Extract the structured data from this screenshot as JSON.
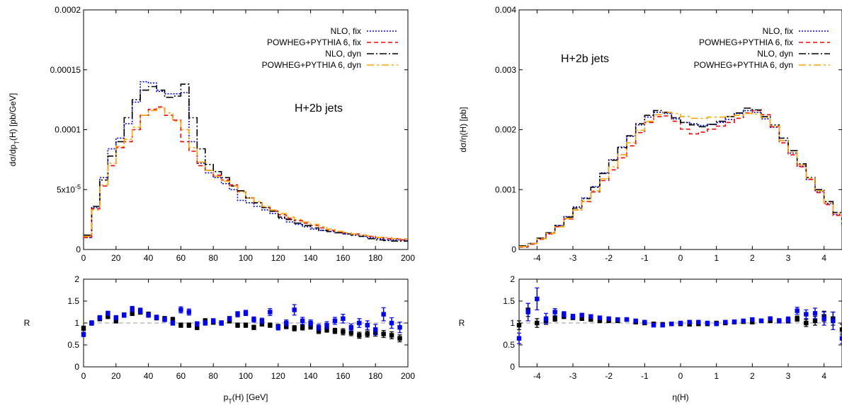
{
  "chart_data": [
    {
      "type": "line",
      "panel": "left-main",
      "annotation": "H+2b jets",
      "ylabel": "dσ/dp_T(H) [pb/GeV]",
      "xlim": [
        0,
        200
      ],
      "ylim": [
        0,
        0.0002
      ],
      "xticks": [
        "0",
        "20",
        "40",
        "60",
        "80",
        "100",
        "120",
        "140",
        "160",
        "180",
        "200"
      ],
      "yticks": [
        {
          "v": 0,
          "label": "0"
        },
        {
          "v": 5e-05,
          "label": "5x10",
          "sup": "-5"
        },
        {
          "v": 0.0001,
          "label": "0.0001"
        },
        {
          "v": 0.00015,
          "label": "0.00015"
        },
        {
          "v": 0.0002,
          "label": "0.0002"
        }
      ],
      "legend_position": "top-right",
      "grid": false,
      "bin_width": 5,
      "series": [
        {
          "name": "NLO, fix",
          "color": "#0000ff",
          "dash": "2,2",
          "values": [
            1e-05,
            3.5e-05,
            6e-05,
            8.4e-05,
            9.3e-05,
            0.000105,
            0.000123,
            0.00014,
            0.000139,
            0.000132,
            0.00013,
            0.00013,
            0.000131,
            9e-05,
            7.2e-05,
            6.4e-05,
            6e-05,
            5.5e-05,
            5e-05,
            4.1e-05,
            3.9e-05,
            3.6e-05,
            3.3e-05,
            3e-05,
            2.6e-05,
            2.3e-05,
            2.1e-05,
            1.9e-05,
            1.7e-05,
            1.6e-05,
            1.5e-05,
            1.4e-05,
            1.3e-05,
            1.2e-05,
            1.1e-05,
            1e-05,
            9e-06,
            8e-06,
            8e-06,
            8e-06
          ]
        },
        {
          "name": "POWHEG+PYTHIA 6, fix",
          "color": "#ff0000",
          "dash": "6,4",
          "values": [
            1e-05,
            3.4e-05,
            5.3e-05,
            7e-05,
            8.5e-05,
            9e-05,
            0.0001,
            0.000112,
            0.000117,
            0.000119,
            0.000112,
            0.000108,
            9e-05,
            8.2e-05,
            7e-05,
            6.6e-05,
            6.2e-05,
            5.8e-05,
            5.4e-05,
            4.8e-05,
            4.3e-05,
            3.9e-05,
            3.5e-05,
            3.2e-05,
            2.9e-05,
            2.6e-05,
            2.4e-05,
            2.2e-05,
            2e-05,
            1.8e-05,
            1.6e-05,
            1.5e-05,
            1.4e-05,
            1.3e-05,
            1.2e-05,
            1.1e-05,
            1e-05,
            9e-06,
            9e-06,
            8e-06
          ]
        },
        {
          "name": "NLO, dyn",
          "color": "#000000",
          "dash": "10,3,2,3",
          "values": [
            1.2e-05,
            3.6e-05,
            5.8e-05,
            7.8e-05,
            9e-05,
            0.00011,
            0.000125,
            0.000133,
            0.000136,
            0.000133,
            0.000127,
            0.000128,
            0.000138,
            0.00011,
            8.4e-05,
            7.1e-05,
            6.5e-05,
            6e-05,
            5.3e-05,
            4.9e-05,
            4.3e-05,
            3.9e-05,
            3.5e-05,
            3.2e-05,
            2.7e-05,
            2.5e-05,
            2.2e-05,
            2e-05,
            1.8e-05,
            1.6e-05,
            1.5e-05,
            1.4e-05,
            1.3e-05,
            1.2e-05,
            1.1e-05,
            9e-06,
            8e-06,
            7.5e-06,
            7e-06,
            7e-06
          ]
        },
        {
          "name": "POWHEG+PYTHIA 6, dyn",
          "color": "#ffa500",
          "dash": "10,4,3,4",
          "values": [
            1.1e-05,
            3.3e-05,
            5.4e-05,
            7.2e-05,
            8.6e-05,
            9.2e-05,
            0.000102,
            0.000112,
            0.000116,
            0.000118,
            0.000114,
            0.000107,
            0.0001,
            8.5e-05,
            7.3e-05,
            6.6e-05,
            6.1e-05,
            5.7e-05,
            5.3e-05,
            4.8e-05,
            4.3e-05,
            4e-05,
            3.6e-05,
            3.3e-05,
            3e-05,
            2.7e-05,
            2.5e-05,
            2.3e-05,
            2.1e-05,
            1.9e-05,
            1.7e-05,
            1.5e-05,
            1.4e-05,
            1.3e-05,
            1.2e-05,
            1.1e-05,
            1e-05,
            1e-05,
            9e-06,
            9e-06
          ]
        }
      ]
    },
    {
      "type": "scatter",
      "panel": "left-ratio",
      "xlabel": "p_T(H) [GeV]",
      "ylabel": "R",
      "xlim": [
        0,
        200
      ],
      "ylim": [
        0,
        2
      ],
      "xticks": [
        "0",
        "20",
        "40",
        "60",
        "80",
        "100",
        "120",
        "140",
        "160",
        "180",
        "200"
      ],
      "yticks": [
        "0",
        "0.5",
        "1",
        "1.5",
        "2"
      ],
      "reference_line": 1,
      "series": [
        {
          "name": "fix",
          "color": "#0000ff",
          "x": [
            0,
            5,
            10,
            15,
            20,
            25,
            30,
            35,
            40,
            45,
            50,
            55,
            60,
            65,
            70,
            75,
            80,
            85,
            90,
            95,
            100,
            105,
            110,
            115,
            120,
            125,
            130,
            135,
            140,
            145,
            150,
            155,
            160,
            165,
            170,
            175,
            180,
            185,
            190,
            195
          ],
          "y": [
            0.74,
            1.0,
            1.12,
            1.22,
            1.12,
            1.18,
            1.32,
            1.28,
            1.18,
            1.13,
            1.08,
            1.0,
            1.3,
            1.25,
            0.98,
            1.0,
            1.05,
            1.0,
            1.1,
            1.2,
            1.23,
            1.08,
            1.05,
            1.25,
            0.9,
            1.0,
            1.3,
            1.05,
            1.0,
            0.9,
            0.95,
            1.05,
            1.1,
            0.9,
            1.0,
            0.95,
            0.85,
            1.2,
            1.0,
            0.9
          ],
          "err": [
            0.05,
            0.05,
            0.05,
            0.05,
            0.05,
            0.05,
            0.06,
            0.06,
            0.05,
            0.05,
            0.05,
            0.05,
            0.07,
            0.07,
            0.05,
            0.05,
            0.05,
            0.05,
            0.05,
            0.06,
            0.06,
            0.06,
            0.06,
            0.08,
            0.06,
            0.07,
            0.12,
            0.08,
            0.07,
            0.07,
            0.08,
            0.08,
            0.1,
            0.08,
            0.1,
            0.1,
            0.12,
            0.15,
            0.12,
            0.12
          ]
        },
        {
          "name": "dyn",
          "color": "#000000",
          "x": [
            0,
            5,
            10,
            15,
            20,
            25,
            30,
            35,
            40,
            45,
            50,
            55,
            60,
            65,
            70,
            75,
            80,
            85,
            90,
            95,
            100,
            105,
            110,
            115,
            120,
            125,
            130,
            135,
            140,
            145,
            150,
            155,
            160,
            165,
            170,
            175,
            180,
            185,
            190,
            195
          ],
          "y": [
            0.88,
            1.0,
            1.1,
            1.15,
            1.05,
            1.18,
            1.22,
            1.25,
            1.2,
            1.12,
            1.1,
            1.08,
            0.95,
            0.95,
            0.9,
            1.05,
            1.02,
            1.0,
            1.05,
            0.95,
            0.95,
            0.9,
            0.98,
            0.95,
            0.92,
            0.92,
            0.88,
            0.9,
            0.92,
            0.82,
            0.85,
            0.82,
            0.8,
            0.78,
            0.72,
            0.75,
            0.78,
            0.75,
            0.72,
            0.65
          ],
          "err": [
            0.05,
            0.05,
            0.05,
            0.05,
            0.05,
            0.05,
            0.05,
            0.05,
            0.05,
            0.05,
            0.05,
            0.05,
            0.05,
            0.05,
            0.05,
            0.05,
            0.05,
            0.05,
            0.05,
            0.05,
            0.05,
            0.05,
            0.05,
            0.05,
            0.05,
            0.05,
            0.06,
            0.06,
            0.06,
            0.06,
            0.06,
            0.06,
            0.07,
            0.07,
            0.07,
            0.07,
            0.08,
            0.08,
            0.08,
            0.08
          ]
        }
      ]
    },
    {
      "type": "line",
      "panel": "right-main",
      "annotation": "H+2b jets",
      "ylabel": "dσ/η(H) [pb]",
      "xlim": [
        -4.5,
        4.5
      ],
      "ylim": [
        0,
        0.004
      ],
      "xticks": [
        "-4",
        "-3",
        "-2",
        "-1",
        "0",
        "1",
        "2",
        "3",
        "4"
      ],
      "yticks": [
        "0",
        "0.001",
        "0.002",
        "0.003",
        "0.004"
      ],
      "legend_position": "top-right",
      "grid": false,
      "bin_width": 0.25,
      "series": [
        {
          "name": "NLO, fix",
          "color": "#0000ff",
          "dash": "2,2",
          "values": [
            5e-05,
            0.0001,
            0.00019,
            0.00028,
            0.0004,
            0.00055,
            0.00071,
            0.00086,
            0.00105,
            0.00128,
            0.0015,
            0.00171,
            0.00189,
            0.00208,
            0.00221,
            0.00229,
            0.00227,
            0.00218,
            0.00212,
            0.0021,
            0.00207,
            0.00209,
            0.00212,
            0.00217,
            0.00227,
            0.00232,
            0.00229,
            0.00218,
            0.00204,
            0.00182,
            0.00161,
            0.00139,
            0.00117,
            0.00097,
            0.00077,
            0.00059,
            0.00042,
            0.00028,
            0.00015,
            7e-05
          ]
        },
        {
          "name": "POWHEG+PYTHIA 6, fix",
          "color": "#ff0000",
          "dash": "6,4",
          "values": [
            4e-05,
            9e-05,
            0.00017,
            0.00026,
            0.00038,
            0.00051,
            0.00066,
            0.0008,
            0.00096,
            0.00115,
            0.00133,
            0.00153,
            0.00173,
            0.00195,
            0.00212,
            0.00222,
            0.00223,
            0.00214,
            0.00201,
            0.00193,
            0.00196,
            0.00201,
            0.00206,
            0.00212,
            0.00219,
            0.00228,
            0.00232,
            0.00225,
            0.00205,
            0.00178,
            0.00158,
            0.00138,
            0.00117,
            0.00095,
            0.00075,
            0.00057,
            0.0004,
            0.00026,
            0.00014,
            6e-05
          ]
        },
        {
          "name": "NLO, dyn",
          "color": "#000000",
          "dash": "10,3,2,3",
          "values": [
            6e-05,
            0.0001,
            0.00019,
            0.00028,
            0.0004,
            0.00054,
            0.00069,
            0.00085,
            0.00104,
            0.00127,
            0.00149,
            0.0017,
            0.0019,
            0.0021,
            0.00224,
            0.00232,
            0.00229,
            0.0022,
            0.00212,
            0.00208,
            0.00205,
            0.00209,
            0.00214,
            0.00222,
            0.00228,
            0.00236,
            0.00233,
            0.00222,
            0.00208,
            0.00186,
            0.00165,
            0.00143,
            0.0012,
            0.001,
            0.0008,
            0.00062,
            0.00044,
            0.0003,
            0.00016,
            7e-05
          ]
        },
        {
          "name": "POWHEG+PYTHIA 6, dyn",
          "color": "#ffa500",
          "dash": "10,4,3,4",
          "values": [
            5e-05,
            0.0001,
            0.00018,
            0.00027,
            0.00038,
            0.00052,
            0.00066,
            0.00081,
            0.00098,
            0.00118,
            0.00138,
            0.00158,
            0.00178,
            0.00199,
            0.00214,
            0.00225,
            0.00229,
            0.00227,
            0.00222,
            0.00219,
            0.00219,
            0.00221,
            0.00221,
            0.00222,
            0.00224,
            0.00227,
            0.00226,
            0.0022,
            0.00206,
            0.00182,
            0.00162,
            0.00141,
            0.00119,
            0.00098,
            0.00078,
            0.0006,
            0.00043,
            0.00028,
            0.00015,
            7e-05
          ]
        }
      ]
    },
    {
      "type": "scatter",
      "panel": "right-ratio",
      "xlabel": "η(H)",
      "ylabel": "R",
      "xlim": [
        -4.5,
        4.5
      ],
      "ylim": [
        0,
        2
      ],
      "xticks": [
        "-4",
        "-3",
        "-2",
        "-1",
        "0",
        "1",
        "2",
        "3",
        "4"
      ],
      "yticks": [
        "0",
        "0.5",
        "1",
        "1.5",
        "2"
      ],
      "reference_line": 1,
      "series": [
        {
          "name": "fix",
          "color": "#0000ff",
          "x": [
            -4.5,
            -4.25,
            -4.0,
            -3.75,
            -3.5,
            -3.25,
            -3.0,
            -2.75,
            -2.5,
            -2.25,
            -2.0,
            -1.75,
            -1.5,
            -1.25,
            -1.0,
            -0.75,
            -0.5,
            -0.25,
            0,
            0.25,
            0.5,
            0.75,
            1.0,
            1.25,
            1.5,
            1.75,
            2.0,
            2.25,
            2.5,
            2.75,
            3.0,
            3.25,
            3.5,
            3.75,
            4.0,
            4.25,
            4.5
          ],
          "y": [
            0.65,
            1.25,
            1.55,
            1.1,
            1.25,
            1.2,
            1.15,
            1.18,
            1.15,
            1.12,
            1.1,
            1.08,
            1.08,
            1.05,
            1.02,
            0.95,
            0.95,
            0.98,
            1.0,
            1.02,
            1.02,
            1.0,
            0.98,
            1.02,
            1.03,
            1.05,
            1.08,
            1.05,
            1.1,
            1.05,
            1.08,
            1.28,
            1.2,
            1.22,
            1.1,
            1.05,
            0.65
          ],
          "err": [
            0.12,
            0.2,
            0.25,
            0.12,
            0.08,
            0.06,
            0.05,
            0.04,
            0.04,
            0.03,
            0.03,
            0.03,
            0.03,
            0.03,
            0.03,
            0.03,
            0.03,
            0.03,
            0.03,
            0.03,
            0.03,
            0.03,
            0.03,
            0.03,
            0.03,
            0.03,
            0.03,
            0.04,
            0.04,
            0.05,
            0.06,
            0.08,
            0.1,
            0.12,
            0.15,
            0.2,
            0.12
          ]
        },
        {
          "name": "dyn",
          "color": "#000000",
          "x": [
            -4.5,
            -4.25,
            -4.0,
            -3.75,
            -3.5,
            -3.25,
            -3.0,
            -2.75,
            -2.5,
            -2.25,
            -2.0,
            -1.75,
            -1.5,
            -1.25,
            -1.0,
            -0.75,
            -0.5,
            -0.25,
            0,
            0.25,
            0.5,
            0.75,
            1.0,
            1.25,
            1.5,
            1.75,
            2.0,
            2.25,
            2.5,
            2.75,
            3.0,
            3.25,
            3.5,
            3.75,
            4.0,
            4.25,
            4.5
          ],
          "y": [
            0.95,
            1.3,
            1.0,
            1.05,
            1.1,
            1.15,
            1.12,
            1.1,
            1.08,
            1.05,
            1.05,
            1.05,
            1.08,
            1.02,
            1.0,
            0.98,
            0.97,
            0.98,
            0.98,
            0.97,
            0.98,
            0.98,
            1.0,
            1.0,
            1.02,
            1.03,
            1.02,
            1.05,
            1.05,
            1.05,
            1.05,
            1.1,
            1.0,
            1.05,
            1.15,
            1.1,
            0.85
          ],
          "err": [
            0.1,
            0.15,
            0.1,
            0.08,
            0.06,
            0.05,
            0.04,
            0.04,
            0.03,
            0.03,
            0.03,
            0.03,
            0.03,
            0.03,
            0.03,
            0.03,
            0.03,
            0.03,
            0.03,
            0.03,
            0.03,
            0.03,
            0.03,
            0.03,
            0.03,
            0.03,
            0.03,
            0.03,
            0.04,
            0.04,
            0.05,
            0.06,
            0.08,
            0.1,
            0.12,
            0.15,
            0.12
          ]
        }
      ]
    }
  ]
}
